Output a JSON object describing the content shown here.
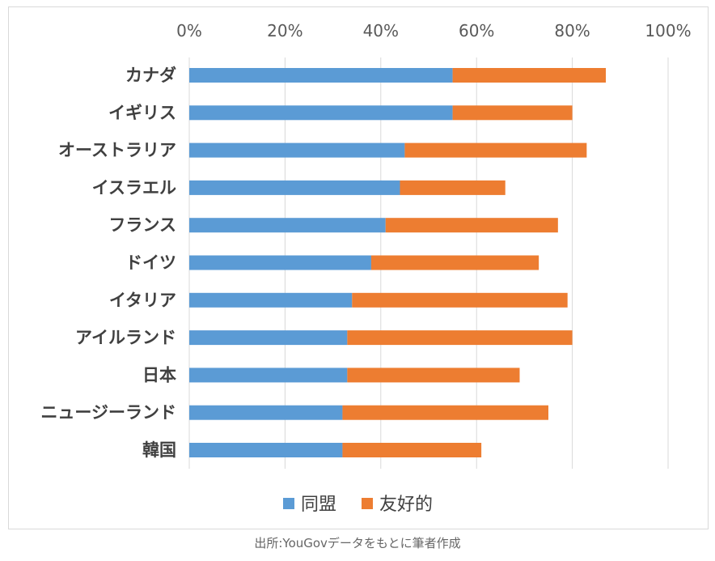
{
  "chart_data": {
    "type": "bar",
    "orientation": "horizontal",
    "stacked": true,
    "categories": [
      "カナダ",
      "イギリス",
      "オーストラリア",
      "イスラエル",
      "フランス",
      "ドイツ",
      "イタリア",
      "アイルランド",
      "日本",
      "ニュージーランド",
      "韓国"
    ],
    "series": [
      {
        "name": "同盟",
        "color": "#5B9BD5",
        "values": [
          55,
          55,
          45,
          44,
          41,
          38,
          34,
          33,
          33,
          32,
          32
        ]
      },
      {
        "name": "友好的",
        "color": "#ED7D31",
        "values": [
          32,
          25,
          38,
          22,
          36,
          35,
          45,
          47,
          36,
          43,
          29
        ]
      }
    ],
    "xlim": [
      0,
      100
    ],
    "x_ticks": [
      "0%",
      "20%",
      "40%",
      "60%",
      "80%",
      "100%"
    ],
    "x_tick_values": [
      0,
      20,
      40,
      60,
      80,
      100
    ],
    "x_axis_position": "top",
    "grid": true,
    "legend_position": "bottom"
  },
  "caption": "出所:YouGovデータをもとに筆者作成"
}
